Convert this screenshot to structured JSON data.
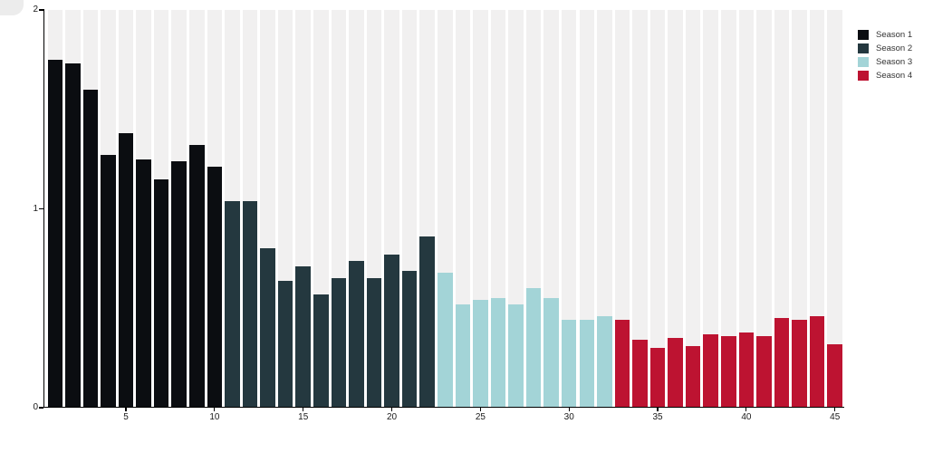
{
  "chart_data": {
    "type": "bar",
    "title": "",
    "xlabel": "",
    "ylabel": "",
    "ylim": [
      0,
      2
    ],
    "yticks": [
      "0",
      "1",
      "2"
    ],
    "xticks": [
      5,
      10,
      15,
      20,
      25,
      30,
      35,
      40,
      45
    ],
    "x_unit": "episode-number",
    "grid": false,
    "legend_position": "top-right",
    "background_columns_color": "#f1f0f0",
    "axis_color": "#000000",
    "tick_label_color": "#1a1a1a",
    "series": [
      {
        "name": "Season 1",
        "color": "#0b0d11",
        "first_episode": 1,
        "values": [
          1.75,
          1.73,
          1.6,
          1.27,
          1.38,
          1.25,
          1.15,
          1.24,
          1.32,
          1.21
        ]
      },
      {
        "name": "Season 2",
        "color": "#24383f",
        "first_episode": 11,
        "values": [
          1.04,
          1.04,
          0.8,
          0.64,
          0.71,
          0.57,
          0.65,
          0.74,
          0.65,
          0.77,
          0.69,
          0.86
        ]
      },
      {
        "name": "Season 3",
        "color": "#a3d4d7",
        "first_episode": 23,
        "values": [
          0.68,
          0.52,
          0.54,
          0.55,
          0.52,
          0.6,
          0.55,
          0.44,
          0.44,
          0.46
        ]
      },
      {
        "name": "Season 4",
        "color": "#bd1331",
        "first_episode": 33,
        "values": [
          0.44,
          0.34,
          0.3,
          0.35,
          0.31,
          0.37,
          0.36,
          0.38,
          0.36,
          0.45,
          0.44,
          0.46,
          0.32
        ]
      }
    ]
  }
}
